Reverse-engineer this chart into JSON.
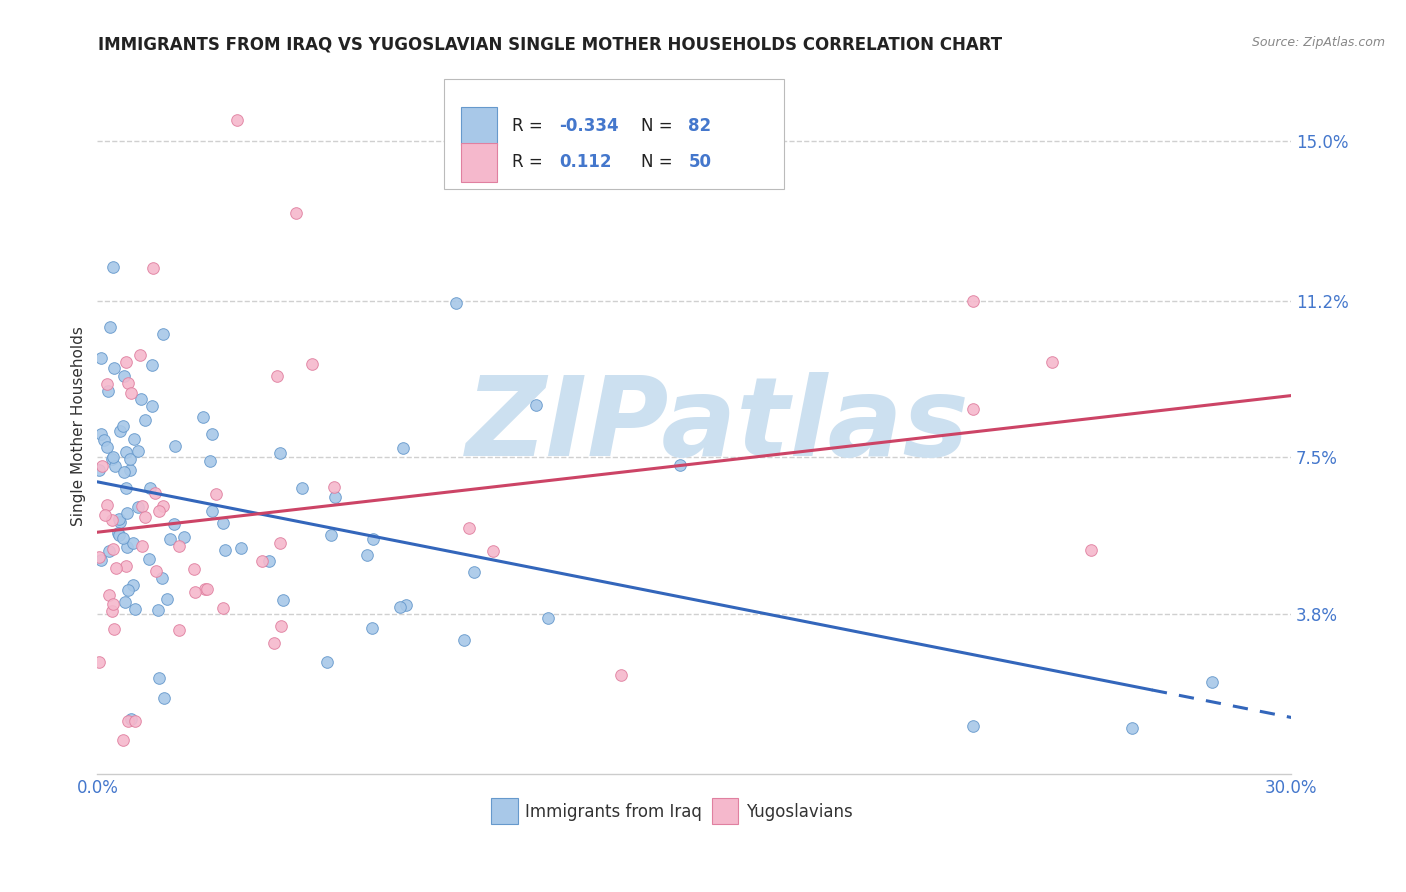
{
  "title": "IMMIGRANTS FROM IRAQ VS YUGOSLAVIAN SINGLE MOTHER HOUSEHOLDS CORRELATION CHART",
  "source": "Source: ZipAtlas.com",
  "ylabel": "Single Mother Households",
  "xlim": [
    0.0,
    0.3
  ],
  "ylim": [
    0.0,
    0.165
  ],
  "ytick_positions": [
    0.038,
    0.075,
    0.112,
    0.15
  ],
  "ytick_labels": [
    "3.8%",
    "7.5%",
    "11.2%",
    "15.0%"
  ],
  "grid_color": "#d0d0d0",
  "background_color": "#ffffff",
  "watermark": "ZIPatlas",
  "watermark_color": "#cce0f0",
  "series": [
    {
      "name": "Immigrants from Iraq",
      "color": "#a8c8e8",
      "edge_color": "#6699cc",
      "line_color": "#3366bb",
      "R": -0.334,
      "N": 82
    },
    {
      "name": "Yugoslavians",
      "color": "#f5b8cc",
      "edge_color": "#e080a0",
      "line_color": "#cc4466",
      "R": 0.112,
      "N": 50
    }
  ],
  "legend_iraq_label": "R = -0.334   N = 82",
  "legend_yugo_label": "R =  0.112   N = 50",
  "title_fontsize": 12,
  "tick_color": "#4477cc",
  "ylabel_color": "#333333"
}
